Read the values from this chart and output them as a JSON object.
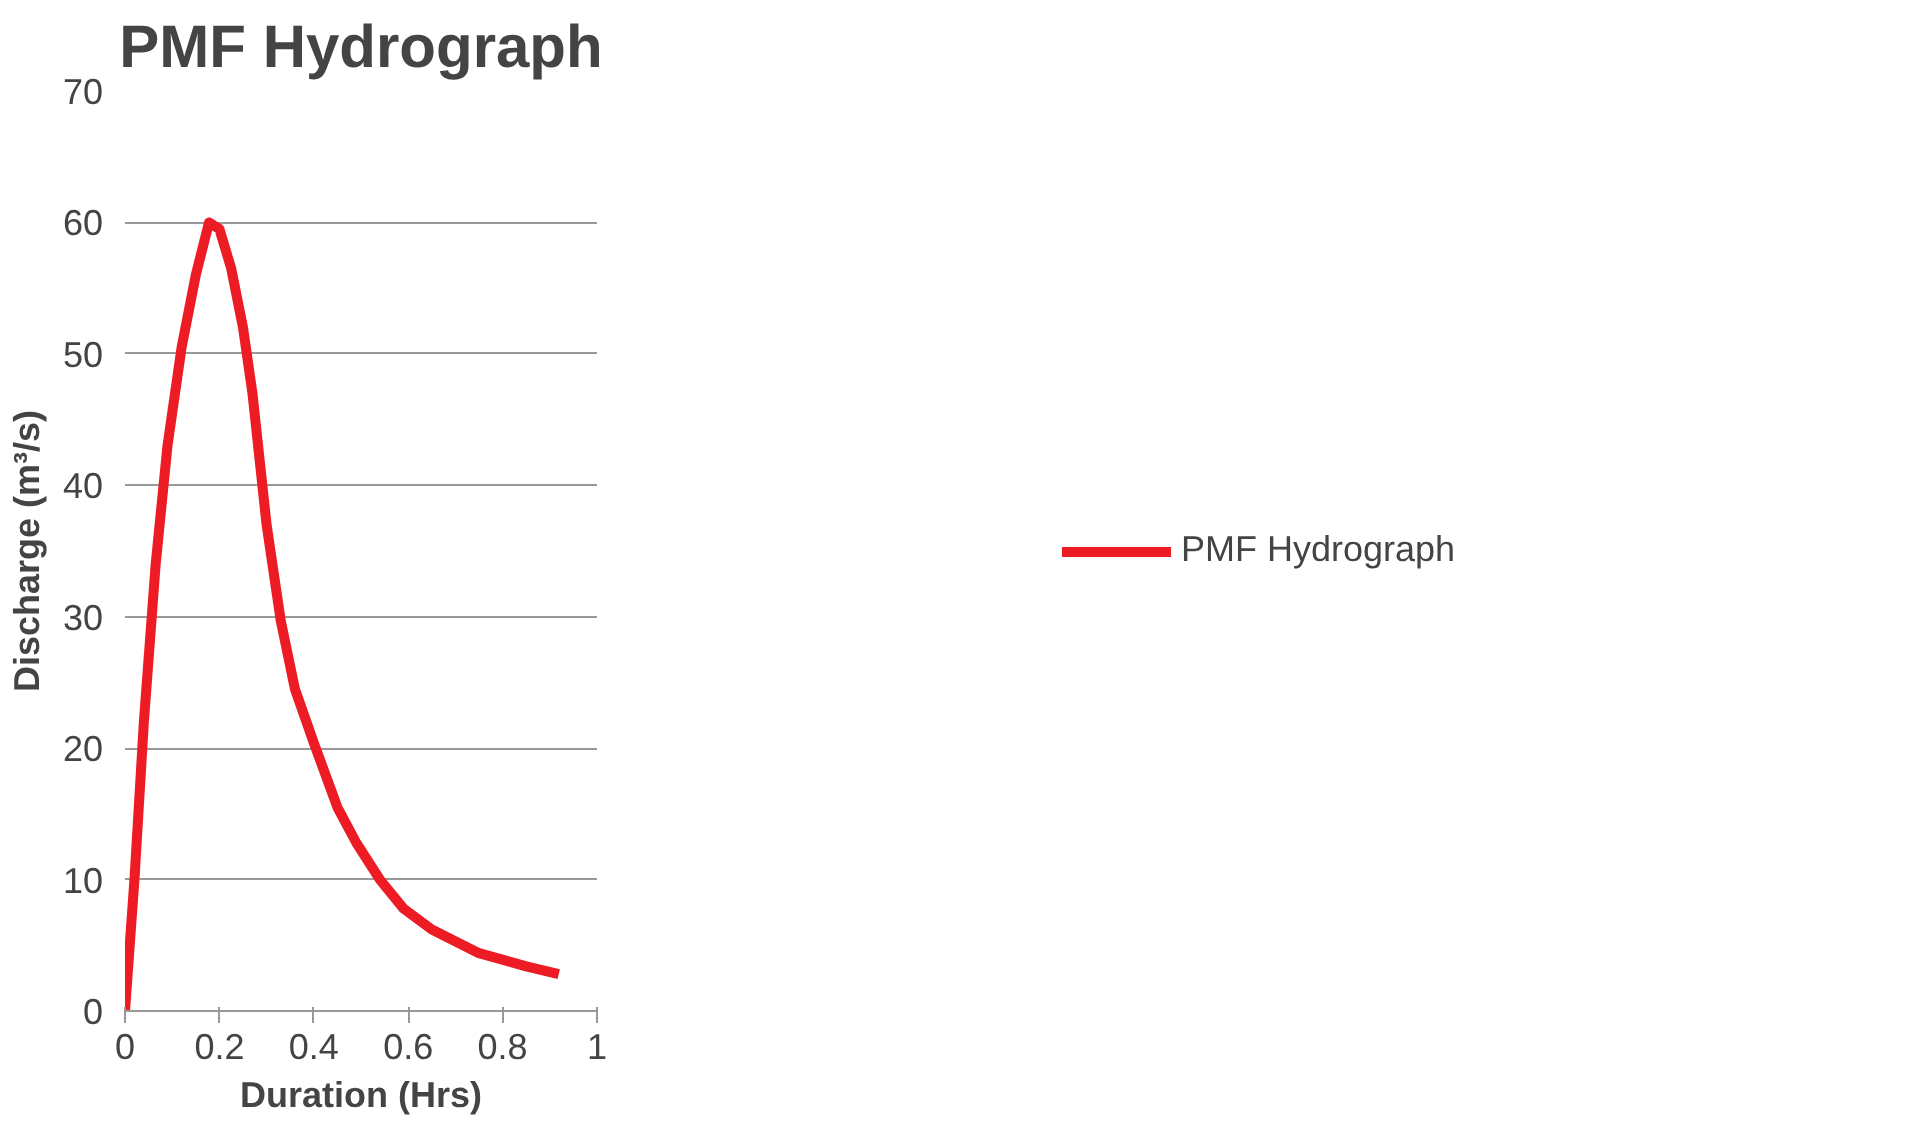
{
  "chart_data": {
    "type": "line",
    "title": "PMF Hydrograph",
    "xlabel": "Duration (Hrs)",
    "ylabel": "Discharge (m³/s)",
    "xlim": [
      0,
      1
    ],
    "xticks": [
      0,
      0.2,
      0.4,
      0.6,
      0.8,
      1
    ],
    "ylim": [
      0,
      70
    ],
    "yticks": [
      0,
      10,
      20,
      30,
      40,
      50,
      60,
      70
    ],
    "grid": "y",
    "legend": "right",
    "marker": "none",
    "line_style": "solid",
    "series": [
      {
        "name": "PMF Hydrograph",
        "color": "#ed1c24",
        "x": [
          0,
          0.02,
          0.04,
          0.065,
          0.09,
          0.12,
          0.15,
          0.178,
          0.2,
          0.225,
          0.25,
          0.27,
          0.3,
          0.33,
          0.36,
          0.4,
          0.45,
          0.49,
          0.54,
          0.59,
          0.65,
          0.75,
          0.85,
          0.919
        ],
        "values": [
          0,
          10,
          22,
          34,
          43,
          50.5,
          56,
          60,
          59.5,
          56.5,
          52,
          47,
          37,
          29.7,
          24.5,
          20.4,
          15.5,
          12.8,
          10,
          7.8,
          6.2,
          4.4,
          3.4,
          2.8
        ]
      }
    ]
  }
}
